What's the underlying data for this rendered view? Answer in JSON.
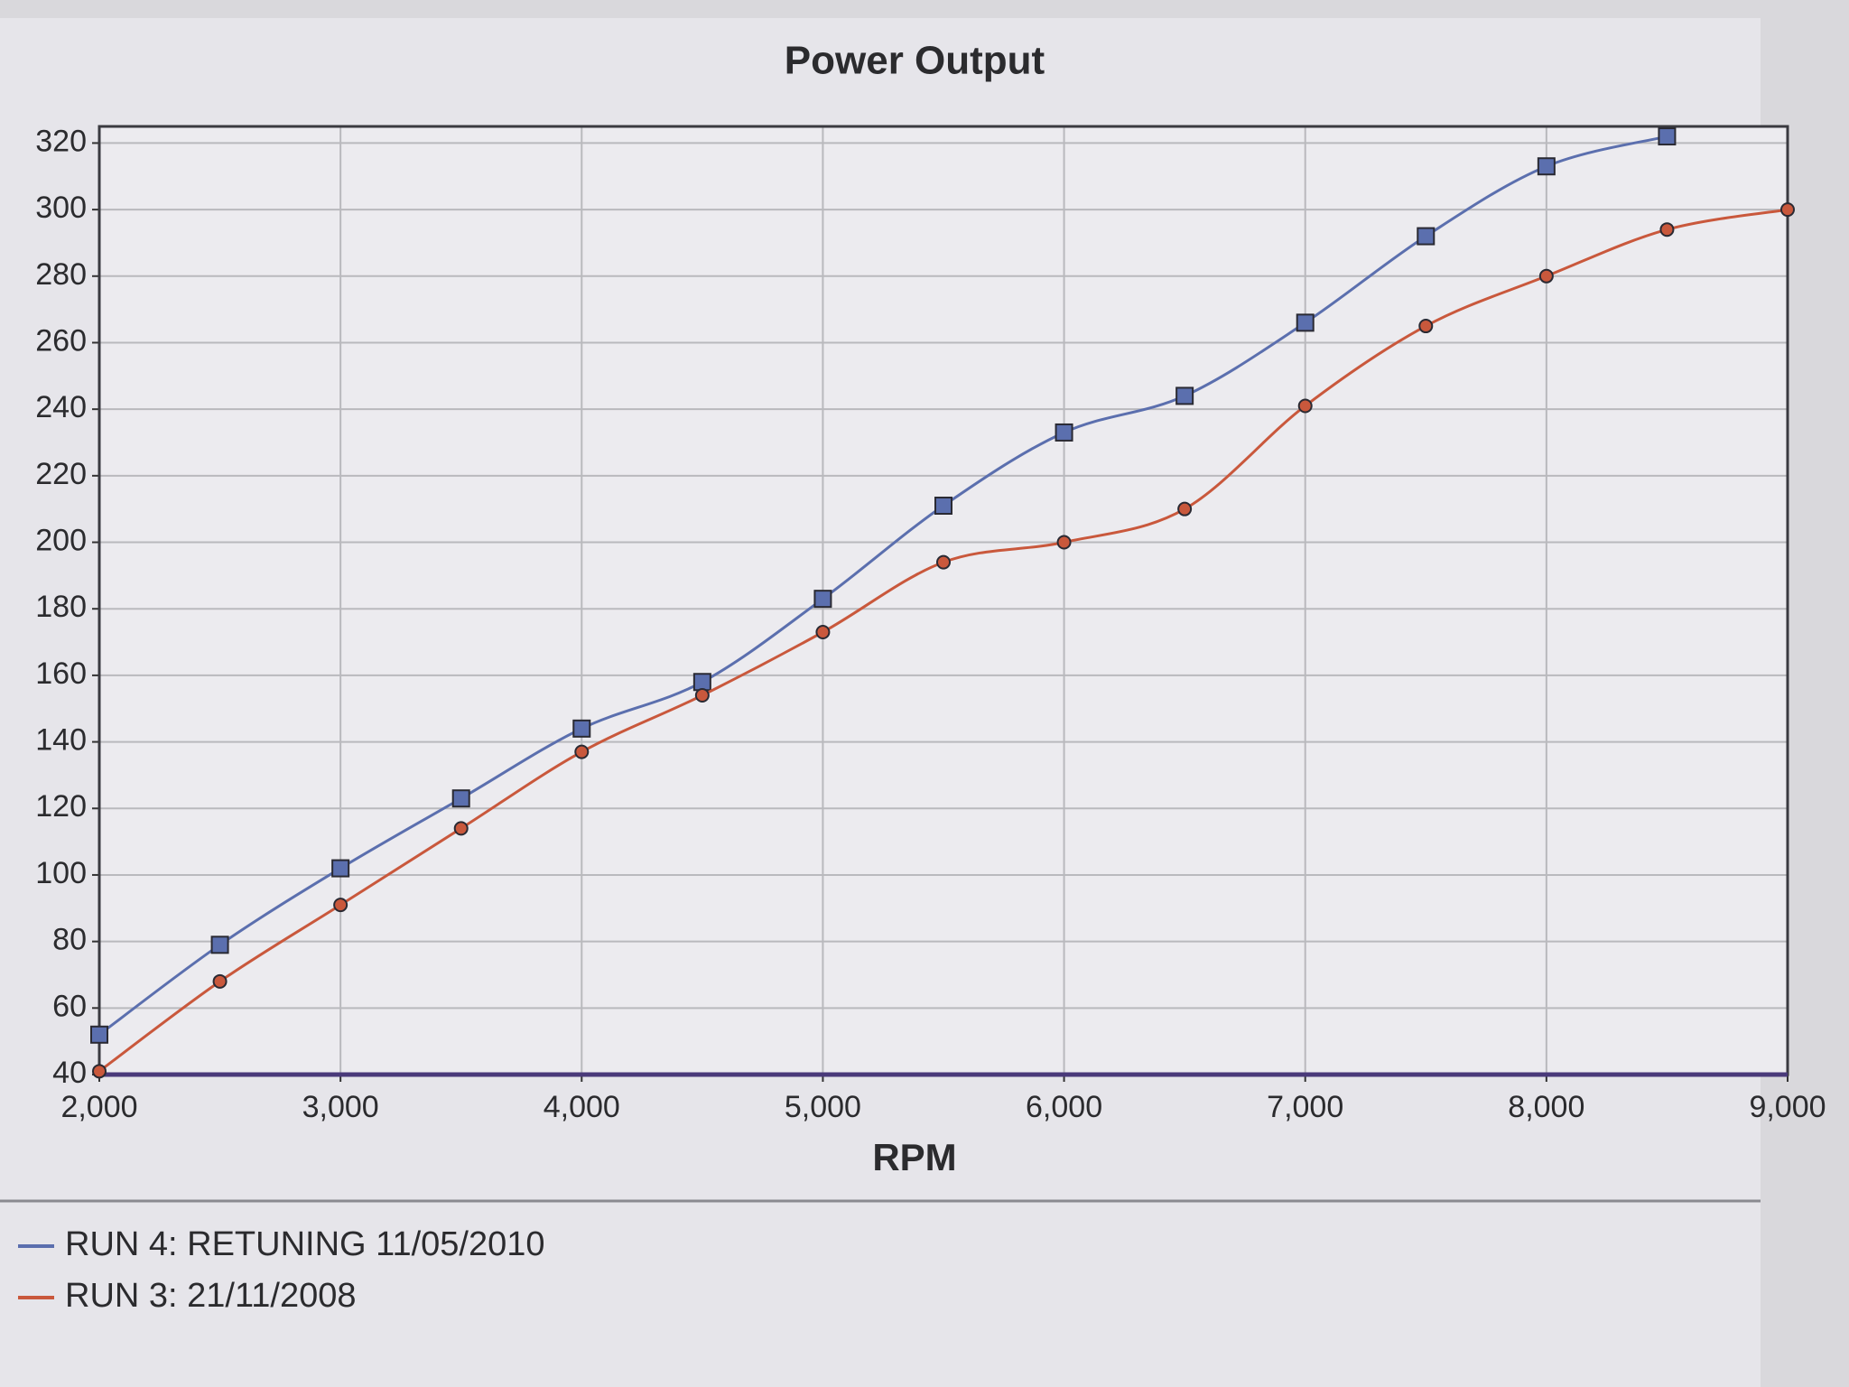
{
  "chart_data": {
    "type": "line",
    "title": "Power Output",
    "x_label": "RPM",
    "x": [
      2000,
      2500,
      3000,
      3500,
      4000,
      4500,
      5000,
      5500,
      6000,
      6500,
      7000,
      7500,
      8000,
      8500,
      9000
    ],
    "series": [
      {
        "name": "RUN 4: RETUNING 11/05/2010",
        "color": "#5b6fae",
        "marker": "square",
        "values": [
          52,
          79,
          102,
          123,
          144,
          158,
          183,
          211,
          233,
          244,
          266,
          292,
          313,
          322,
          null
        ]
      },
      {
        "name": "RUN 3: 21/11/2008",
        "color": "#c9583c",
        "marker": "circle",
        "values": [
          41,
          68,
          91,
          114,
          137,
          154,
          173,
          194,
          200,
          210,
          241,
          265,
          280,
          294,
          300
        ]
      }
    ],
    "xlim": [
      2000,
      9000
    ],
    "xticks": [
      {
        "value": 2000,
        "label": "2,000"
      },
      {
        "value": 3000,
        "label": "3,000"
      },
      {
        "value": 4000,
        "label": "4,000"
      },
      {
        "value": 5000,
        "label": "5,000"
      },
      {
        "value": 6000,
        "label": "6,000"
      },
      {
        "value": 7000,
        "label": "7,000"
      },
      {
        "value": 8000,
        "label": "8,000"
      },
      {
        "value": 9000,
        "label": "9,000"
      }
    ],
    "ylim": [
      40,
      325
    ],
    "yticks": [
      40,
      60,
      80,
      100,
      120,
      140,
      160,
      180,
      200,
      220,
      240,
      260,
      280,
      300,
      320
    ],
    "grid": true
  }
}
